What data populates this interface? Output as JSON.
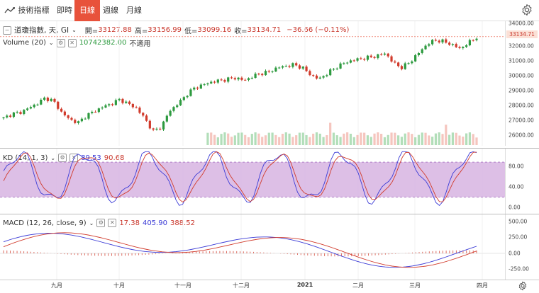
{
  "toolbar": {
    "indicators_label": "技術指標",
    "realtime_label": "即時",
    "daily_label": "日線",
    "weekly_label": "週線",
    "monthly_label": "月線"
  },
  "main_legend": {
    "symbol": "道瓊指數, 天, GI",
    "open_label": "開=",
    "open": "33127.88",
    "high_label": "高=",
    "high": "33156.99",
    "low_label": "低=",
    "low": "33099.16",
    "close_label": "收=",
    "close": "33134.71",
    "change": "−36.66 (−0.11%)"
  },
  "volume_legend": {
    "label": "Volume (20)",
    "value": "10742382.00",
    "na": "不適用"
  },
  "kd_legend": {
    "label": "KD (14, 1, 3)",
    "k": "89.53",
    "d": "90.68"
  },
  "macd_legend": {
    "label": "MACD (12, 26, close, 9)",
    "hist": "17.38",
    "macd": "405.90",
    "signal": "388.52"
  },
  "price_axis": [
    "34000.00",
    "33000.00",
    "32000.00",
    "31000.00",
    "30000.00",
    "29000.00",
    "28000.00",
    "27000.00",
    "26000.00"
  ],
  "price_tag": "33134.71",
  "kd_axis": [
    "80.00",
    "40.00",
    "0.00"
  ],
  "macd_axis": [
    "500.00",
    "250.00",
    "0.00",
    "-250.00"
  ],
  "x_axis": [
    "九月",
    "十月",
    "十一月",
    "十二月",
    "2021",
    "二月",
    "三月",
    "四月"
  ],
  "colors": {
    "up": "#2d9a3f",
    "down": "#d13b2c",
    "accent": "#e8523b",
    "kd_band": "#d9b8e3"
  },
  "chart_data": {
    "type": "candlestick",
    "ylim": [
      25600,
      34200
    ],
    "closes_approx": [
      27500,
      27800,
      27900,
      28200,
      28500,
      28900,
      28700,
      27900,
      27400,
      27200,
      27700,
      28000,
      28300,
      28500,
      28800,
      28500,
      28200,
      27500,
      26600,
      26900,
      28000,
      28500,
      29100,
      29600,
      29800,
      30000,
      30100,
      30200,
      30300,
      30100,
      30400,
      30600,
      30700,
      31000,
      31100,
      31200,
      31000,
      30500,
      30200,
      30600,
      31000,
      31300,
      31500,
      31600,
      31700,
      31800,
      32000,
      31300,
      31000,
      31400,
      32000,
      32600,
      32900,
      32800,
      32600,
      32300,
      32700,
      33100
    ]
  }
}
